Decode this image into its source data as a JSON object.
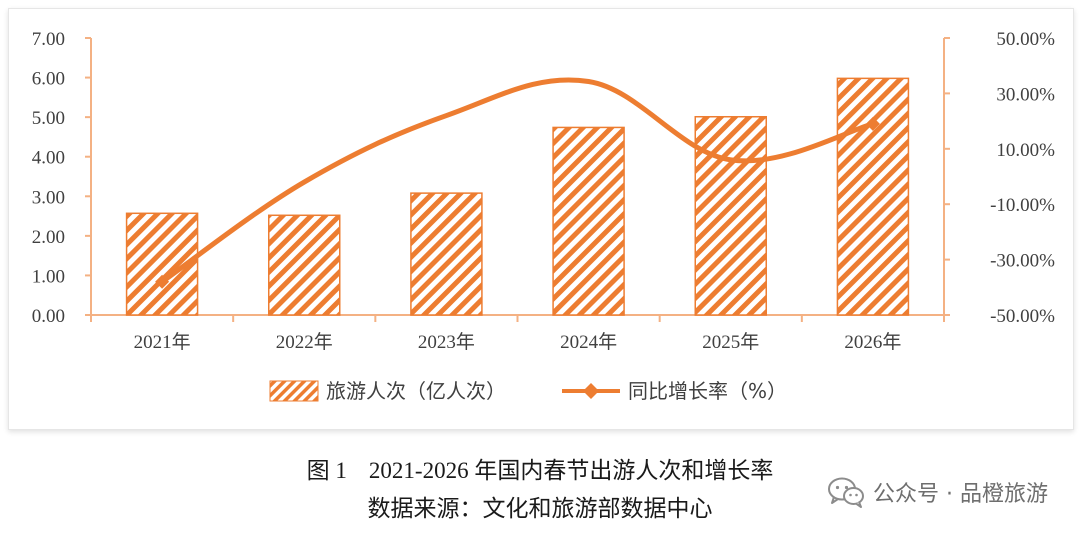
{
  "chart_data": {
    "type": "bar",
    "categories": [
      "2021年",
      "2022年",
      "2023年",
      "2024年",
      "2025年",
      "2026年"
    ],
    "series": [
      {
        "name": "旅游人次（亿人次）",
        "type": "bar",
        "axis": "left",
        "values": [
          2.57,
          2.52,
          3.08,
          4.74,
          5.01,
          5.98
        ]
      },
      {
        "name": "同比增长率（%）",
        "type": "line",
        "axis": "right",
        "values": [
          -38.0,
          -2.0,
          22.0,
          34.3,
          6.0,
          19.0
        ]
      }
    ],
    "yleft": {
      "min": 0,
      "max": 7,
      "step": 1,
      "ticks": [
        "0.00",
        "1.00",
        "2.00",
        "3.00",
        "4.00",
        "5.00",
        "6.00",
        "7.00"
      ]
    },
    "yright": {
      "min": -50,
      "max": 50,
      "step": 20,
      "ticks": [
        "-50.00%",
        "-30.00%",
        "-10.00%",
        "10.00%",
        "30.00%",
        "50.00%"
      ]
    },
    "legend": "bottom",
    "grid": false
  },
  "caption": {
    "figure_number": "图 1",
    "title": "2021-2026 年国内春节出游人次和增长率",
    "source": "数据来源：文化和旅游部数据中心"
  },
  "watermark": {
    "text": "公众号 · 品橙旅游",
    "icon": "wechat-icon"
  },
  "colors": {
    "accent": "#ED7D31",
    "axis": "#F4B183",
    "text": "#404040"
  }
}
